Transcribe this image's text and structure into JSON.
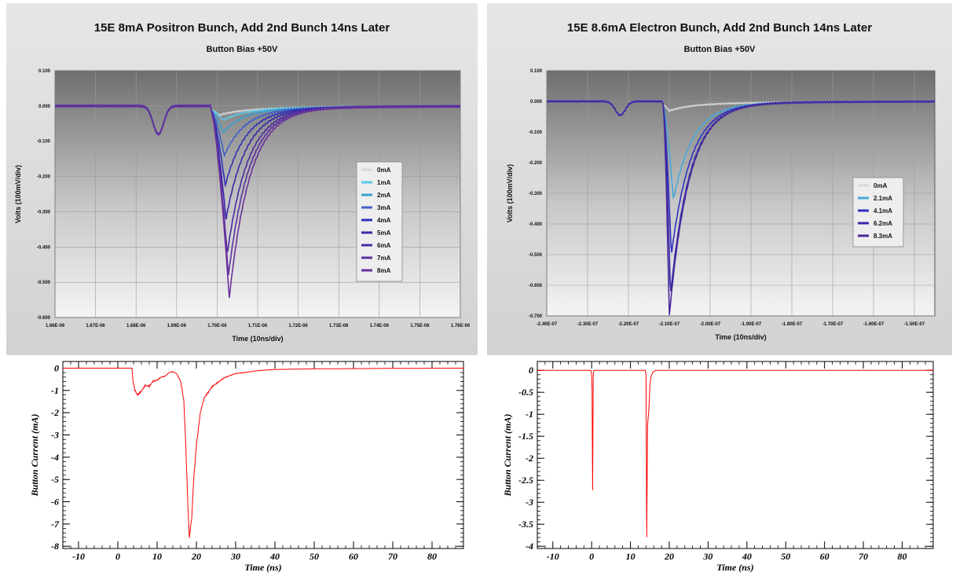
{
  "chart_data": [
    {
      "type": "line",
      "title": "15E 8mA Positron Bunch, Add 2nd Bunch 14ns Later",
      "subtitle": "Button Bias +50V",
      "xlabel": "Time (10ns/div)",
      "ylabel": "Volts (100mV/div)",
      "x_ticks": [
        "1.66E-06",
        "1.67E-06",
        "1.68E-06",
        "1.69E-06",
        "1.70E-06",
        "1.71E-06",
        "1.72E-06",
        "1.73E-06",
        "1.74E-06",
        "1.75E-06",
        "1.76E-06"
      ],
      "y_ticks": [
        "0.100",
        "0.000",
        "-0.100",
        "-0.200",
        "-0.300",
        "-0.400",
        "-0.500",
        "-0.600"
      ],
      "xlim": [
        1.66e-06,
        1.76e-06
      ],
      "ylim": [
        -0.6,
        0.1
      ],
      "grid": true,
      "legend_position": "right",
      "first_bunch": {
        "x": 1.6855e-06,
        "y": -0.08
      },
      "second_bunch_start": 1.6985e-06,
      "series": [
        {
          "name": "0mA",
          "color": "#d8d8d8",
          "peak_x": 1.7005e-06,
          "peak_y": -0.015
        },
        {
          "name": "1mA",
          "color": "#5bc8e8",
          "peak_x": 1.7015e-06,
          "peak_y": -0.03
        },
        {
          "name": "2mA",
          "color": "#3a9fd0",
          "peak_x": 1.7015e-06,
          "peak_y": -0.065
        },
        {
          "name": "3mA",
          "color": "#4060c8",
          "peak_x": 1.7018e-06,
          "peak_y": -0.13
        },
        {
          "name": "4mA",
          "color": "#3030b8",
          "peak_x": 1.702e-06,
          "peak_y": -0.215
        },
        {
          "name": "5mA",
          "color": "#3a28a8",
          "peak_x": 1.7022e-06,
          "peak_y": -0.31
        },
        {
          "name": "6mA",
          "color": "#4a2aa0",
          "peak_x": 1.7025e-06,
          "peak_y": -0.41
        },
        {
          "name": "7mA",
          "color": "#5a30a0",
          "peak_x": 1.7028e-06,
          "peak_y": -0.47
        },
        {
          "name": "8mA",
          "color": "#6a309a",
          "peak_x": 1.703e-06,
          "peak_y": -0.535
        }
      ]
    },
    {
      "type": "line",
      "title": "15E 8.6mA Electron Bunch, Add 2nd Bunch 14ns Later",
      "subtitle": "Button Bias +50V",
      "xlabel": "Time (10ns/div)",
      "ylabel": "Volts (100mV/div)",
      "x_ticks": [
        "-2.40E-07",
        "-2.30E-07",
        "-2.20E-07",
        "-2.10E-07",
        "-2.00E-07",
        "-1.90E-07",
        "-1.80E-07",
        "-1.70E-07",
        "-1.60E-07",
        "-1.50E-07"
      ],
      "y_ticks": [
        "0.100",
        "0.000",
        "-0.100",
        "-0.200",
        "-0.300",
        "-0.400",
        "-0.500",
        "-0.600",
        "-0.700"
      ],
      "xlim": [
        -2.4e-07,
        -1.45e-07
      ],
      "ylim": [
        -0.7,
        0.1
      ],
      "grid": true,
      "legend_position": "right",
      "first_bunch": {
        "x": -2.22e-07,
        "y": -0.045
      },
      "second_bunch_start": -2.115e-07,
      "series": [
        {
          "name": "0mA",
          "color": "#d8d8d8",
          "peak_x": -2.1e-07,
          "peak_y": -0.02
        },
        {
          "name": "2.1mA",
          "color": "#4aa8d8",
          "peak_x": -2.09e-07,
          "peak_y": -0.31
        },
        {
          "name": "4.1mA",
          "color": "#3030c0",
          "peak_x": -2.095e-07,
          "peak_y": -0.49
        },
        {
          "name": "6.2mA",
          "color": "#3828a8",
          "peak_x": -2.097e-07,
          "peak_y": -0.62
        },
        {
          "name": "8.3mA",
          "color": "#4a2a9a",
          "peak_x": -2.1e-07,
          "peak_y": -0.69
        }
      ]
    },
    {
      "type": "line",
      "title": "",
      "xlabel": "Time (ns)",
      "ylabel": "Button Current (mA)",
      "x_ticks": [
        "-10",
        "0",
        "10",
        "20",
        "30",
        "40",
        "50",
        "60",
        "70",
        "80"
      ],
      "y_ticks": [
        "0",
        "-1",
        "-2",
        "-3",
        "-4",
        "-5",
        "-6",
        "-7",
        "-8"
      ],
      "xlim": [
        -14,
        88
      ],
      "ylim": [
        -8.1,
        0.3
      ],
      "color": "#ff0000",
      "points": [
        [
          -14,
          0
        ],
        [
          3.6,
          0
        ],
        [
          3.8,
          -0.5
        ],
        [
          4.3,
          -1.0
        ],
        [
          5,
          -1.2
        ],
        [
          6,
          -1.05
        ],
        [
          7,
          -0.8
        ],
        [
          8,
          -0.85
        ],
        [
          9,
          -0.6
        ],
        [
          10,
          -0.55
        ],
        [
          11,
          -0.4
        ],
        [
          12,
          -0.35
        ],
        [
          13,
          -0.2
        ],
        [
          14,
          -0.15
        ],
        [
          15,
          -0.25
        ],
        [
          16,
          -0.6
        ],
        [
          16.8,
          -1.5
        ],
        [
          17.3,
          -3.5
        ],
        [
          17.8,
          -6.0
        ],
        [
          18.2,
          -7.6
        ],
        [
          18.8,
          -6.8
        ],
        [
          19.3,
          -5.0
        ],
        [
          20,
          -3.5
        ],
        [
          21,
          -2.0
        ],
        [
          22,
          -1.3
        ],
        [
          24,
          -0.8
        ],
        [
          27,
          -0.45
        ],
        [
          30,
          -0.25
        ],
        [
          35,
          -0.12
        ],
        [
          40,
          -0.06
        ],
        [
          50,
          -0.03
        ],
        [
          60,
          -0.02
        ],
        [
          70,
          -0.01
        ],
        [
          88,
          0
        ]
      ]
    },
    {
      "type": "line",
      "title": "",
      "xlabel": "Time (ns)",
      "ylabel": "Button Current (mA)",
      "x_ticks": [
        "-10",
        "0",
        "10",
        "20",
        "30",
        "40",
        "50",
        "60",
        "70",
        "80"
      ],
      "y_ticks": [
        "0",
        "-0.5",
        "-1",
        "-1.5",
        "-2",
        "-2.5",
        "-3",
        "-3.5",
        "-4"
      ],
      "xlim": [
        -14,
        88
      ],
      "ylim": [
        -4.05,
        0.2
      ],
      "color": "#ff0000",
      "points": [
        [
          -14,
          0
        ],
        [
          -0.2,
          0
        ],
        [
          0,
          -0.1
        ],
        [
          0.1,
          -0.4
        ],
        [
          0.25,
          -2.7
        ],
        [
          0.4,
          -0.1
        ],
        [
          0.6,
          0
        ],
        [
          13.8,
          0
        ],
        [
          14,
          -0.1
        ],
        [
          14.2,
          -3.8
        ],
        [
          14.4,
          -1.3
        ],
        [
          14.7,
          -0.9
        ],
        [
          15,
          -0.35
        ],
        [
          15.3,
          -0.15
        ],
        [
          15.7,
          -0.05
        ],
        [
          16.5,
          0
        ],
        [
          88,
          0
        ]
      ]
    }
  ]
}
